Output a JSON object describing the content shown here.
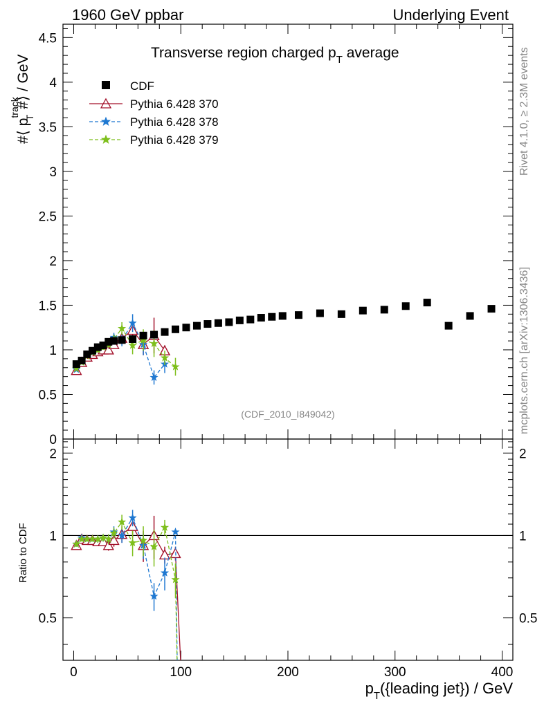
{
  "header": {
    "left": "1960 GeV ppbar",
    "right": "Underlying Event"
  },
  "side": {
    "rivet": "Rivet 4.1.0, ≥ 2.3M events",
    "mcplots": "mcplots.cern.ch [arXiv:1306.3436]"
  },
  "chart_data": {
    "type": "scatter",
    "title": "Transverse region charged p",
    "title_sub": "T",
    "title_tail": " average",
    "analysis": "(CDF_2010_I849042)",
    "ylabel_main": {
      "pre": "#⟨ p",
      "sup": "track",
      "sub": "T",
      "post": " #⟩ / GeV"
    },
    "ylabel_ratio": "Ratio to CDF",
    "xlabel": {
      "pre": "p",
      "sub": "T",
      "post": "({leading jet}) / GeV"
    },
    "xlim": [
      -10,
      410
    ],
    "ylim_main": [
      0,
      4.65
    ],
    "ylim_ratio": [
      0.35,
      2.25
    ],
    "x_ticks": [
      0,
      100,
      200,
      300,
      400
    ],
    "y_ticks_main": [
      0,
      0.5,
      1,
      1.5,
      2,
      2.5,
      3,
      3.5,
      4,
      4.5
    ],
    "y_ticks_ratio": [
      0.5,
      1,
      2
    ],
    "legend": [
      "CDF",
      "Pythia 6.428 370",
      "Pythia 6.428 378",
      "Pythia 6.428 379"
    ],
    "data": {
      "name": "CDF",
      "x": [
        2.5,
        7.5,
        12.5,
        17.5,
        22.5,
        27.5,
        32.5,
        37.5,
        45,
        55,
        65,
        75,
        85,
        95,
        105,
        115,
        125,
        135,
        145,
        155,
        165,
        175,
        185,
        195,
        210,
        230,
        250,
        270,
        290,
        310,
        330,
        350,
        370,
        390
      ],
      "y": [
        0.84,
        0.88,
        0.95,
        0.99,
        1.03,
        1.05,
        1.09,
        1.1,
        1.11,
        1.12,
        1.16,
        1.17,
        1.2,
        1.23,
        1.25,
        1.27,
        1.29,
        1.3,
        1.31,
        1.33,
        1.34,
        1.36,
        1.37,
        1.38,
        1.39,
        1.41,
        1.4,
        1.44,
        1.45,
        1.49,
        1.53,
        1.27,
        1.38,
        1.46
      ]
    },
    "series": [
      {
        "name": "Pythia 6.428 370",
        "color": "#a3102a",
        "marker": "triangle",
        "dash": "",
        "x": [
          2.5,
          7.5,
          12.5,
          17.5,
          22.5,
          27.5,
          32.5,
          37.5,
          45,
          55,
          65,
          75,
          85
        ],
        "y": [
          0.77,
          0.86,
          0.92,
          0.95,
          0.98,
          1.0,
          1.0,
          1.06,
          1.13,
          1.22,
          1.06,
          1.16,
          0.99
        ],
        "err": [
          0.02,
          0.02,
          0.02,
          0.02,
          0.03,
          0.03,
          0.04,
          0.05,
          0.07,
          0.1,
          0.12,
          0.2,
          0.06
        ],
        "ratio": [
          0.92,
          0.97,
          0.96,
          0.96,
          0.95,
          0.95,
          0.92,
          0.96,
          1.01,
          1.08,
          0.92,
          1.0,
          0.85,
          0.86,
          0.0
        ],
        "ratio_err": [
          0.02,
          0.02,
          0.02,
          0.02,
          0.03,
          0.03,
          0.04,
          0.05,
          0.07,
          0.1,
          0.12,
          0.18,
          0.06,
          0.05,
          0.0
        ],
        "ratio_x": [
          2.5,
          7.5,
          12.5,
          17.5,
          22.5,
          27.5,
          32.5,
          37.5,
          45,
          55,
          65,
          75,
          85,
          95,
          101
        ]
      },
      {
        "name": "Pythia 6.428 378",
        "color": "#1f78d1",
        "marker": "star",
        "dash": "5,3",
        "x": [
          2.5,
          7.5,
          12.5,
          17.5,
          22.5,
          27.5,
          32.5,
          37.5,
          45,
          55,
          65,
          75,
          85
        ],
        "y": [
          0.78,
          0.87,
          0.93,
          0.97,
          1.0,
          1.03,
          1.06,
          1.14,
          1.11,
          1.3,
          1.06,
          0.69,
          0.84
        ],
        "err": [
          0.02,
          0.02,
          0.02,
          0.02,
          0.03,
          0.03,
          0.04,
          0.05,
          0.07,
          0.1,
          0.12,
          0.08,
          0.1
        ],
        "ratio": [
          0.93,
          0.98,
          0.97,
          0.97,
          0.97,
          0.98,
          0.97,
          1.03,
          1.0,
          1.16,
          0.92,
          0.6,
          0.73,
          1.03,
          0.0
        ],
        "ratio_err": [
          0.02,
          0.02,
          0.02,
          0.02,
          0.03,
          0.03,
          0.04,
          0.05,
          0.06,
          0.08,
          0.1,
          0.07,
          0.1,
          0.0,
          0.0
        ],
        "ratio_x": [
          2.5,
          7.5,
          12.5,
          17.5,
          22.5,
          27.5,
          32.5,
          37.5,
          45,
          55,
          65,
          75,
          85,
          95,
          97
        ]
      },
      {
        "name": "Pythia 6.428 379",
        "color": "#7ebf1c",
        "marker": "star",
        "dash": "5,3",
        "x": [
          2.5,
          7.5,
          12.5,
          17.5,
          22.5,
          27.5,
          32.5,
          37.5,
          45,
          55,
          65,
          75,
          85,
          95
        ],
        "y": [
          0.79,
          0.86,
          0.93,
          0.97,
          1.0,
          1.03,
          1.06,
          1.12,
          1.24,
          1.05,
          1.11,
          1.07,
          0.91,
          0.81
        ],
        "err": [
          0.02,
          0.02,
          0.02,
          0.02,
          0.03,
          0.03,
          0.04,
          0.05,
          0.07,
          0.1,
          0.12,
          0.15,
          0.08,
          0.1
        ],
        "ratio": [
          0.93,
          0.97,
          0.97,
          0.97,
          0.97,
          0.98,
          0.97,
          1.02,
          1.12,
          0.94,
          0.96,
          0.91,
          1.07,
          0.69,
          0.0
        ],
        "ratio_err": [
          0.02,
          0.02,
          0.02,
          0.02,
          0.03,
          0.03,
          0.04,
          0.05,
          0.07,
          0.1,
          0.12,
          0.14,
          0.07,
          0.1,
          0.0
        ],
        "ratio_x": [
          2.5,
          7.5,
          12.5,
          17.5,
          22.5,
          27.5,
          32.5,
          37.5,
          45,
          55,
          65,
          75,
          85,
          95,
          97
        ]
      }
    ]
  }
}
